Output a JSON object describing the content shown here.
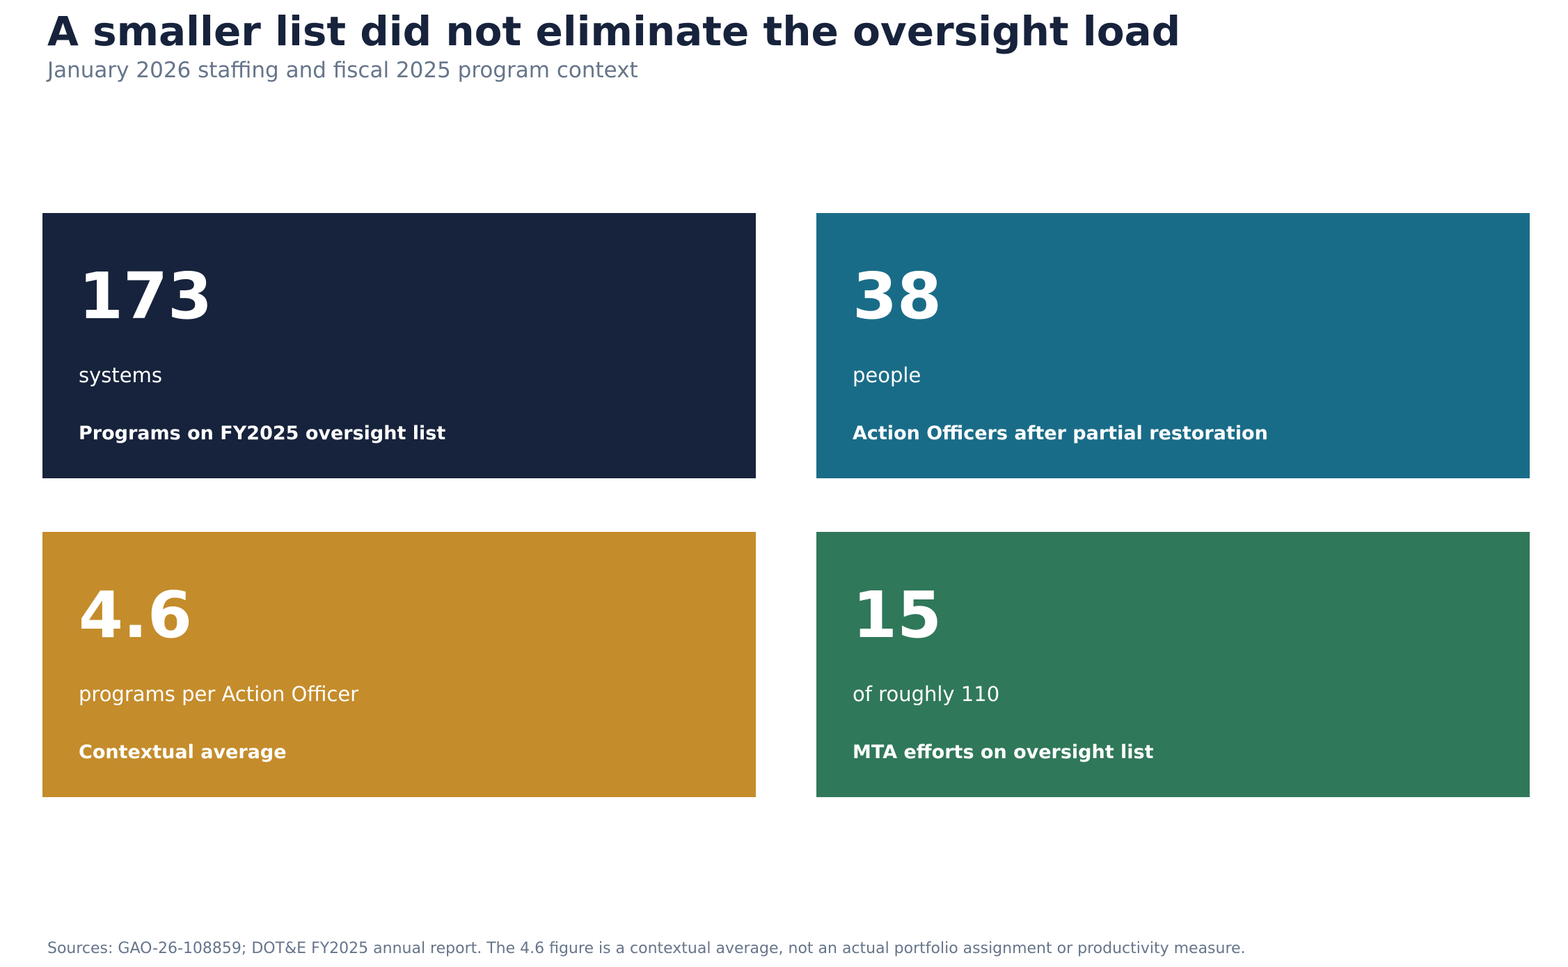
{
  "chart_data": {
    "type": "table",
    "title": "A smaller list did not eliminate the oversight load",
    "subtitle": "January 2026 staffing and fiscal 2025 program context",
    "cards": [
      {
        "value": "173",
        "unit": "systems",
        "label": "Programs on FY2025 oversight list",
        "color": "#17233c"
      },
      {
        "value": "38",
        "unit": "people",
        "label": "Action Officers after partial restoration",
        "color": "#196c88"
      },
      {
        "value": "4.6",
        "unit": "programs per Action Officer",
        "label": "Contextual average",
        "color": "#c48c2b"
      },
      {
        "value": "15",
        "unit": "of roughly 110",
        "label": "MTA efforts on oversight list",
        "color": "#30785a"
      }
    ],
    "source": "Sources: GAO-26-108859; DOT&E FY2025 annual report. The 4.6 figure is a contextual average, not an actual portfolio assignment or productivity measure."
  }
}
